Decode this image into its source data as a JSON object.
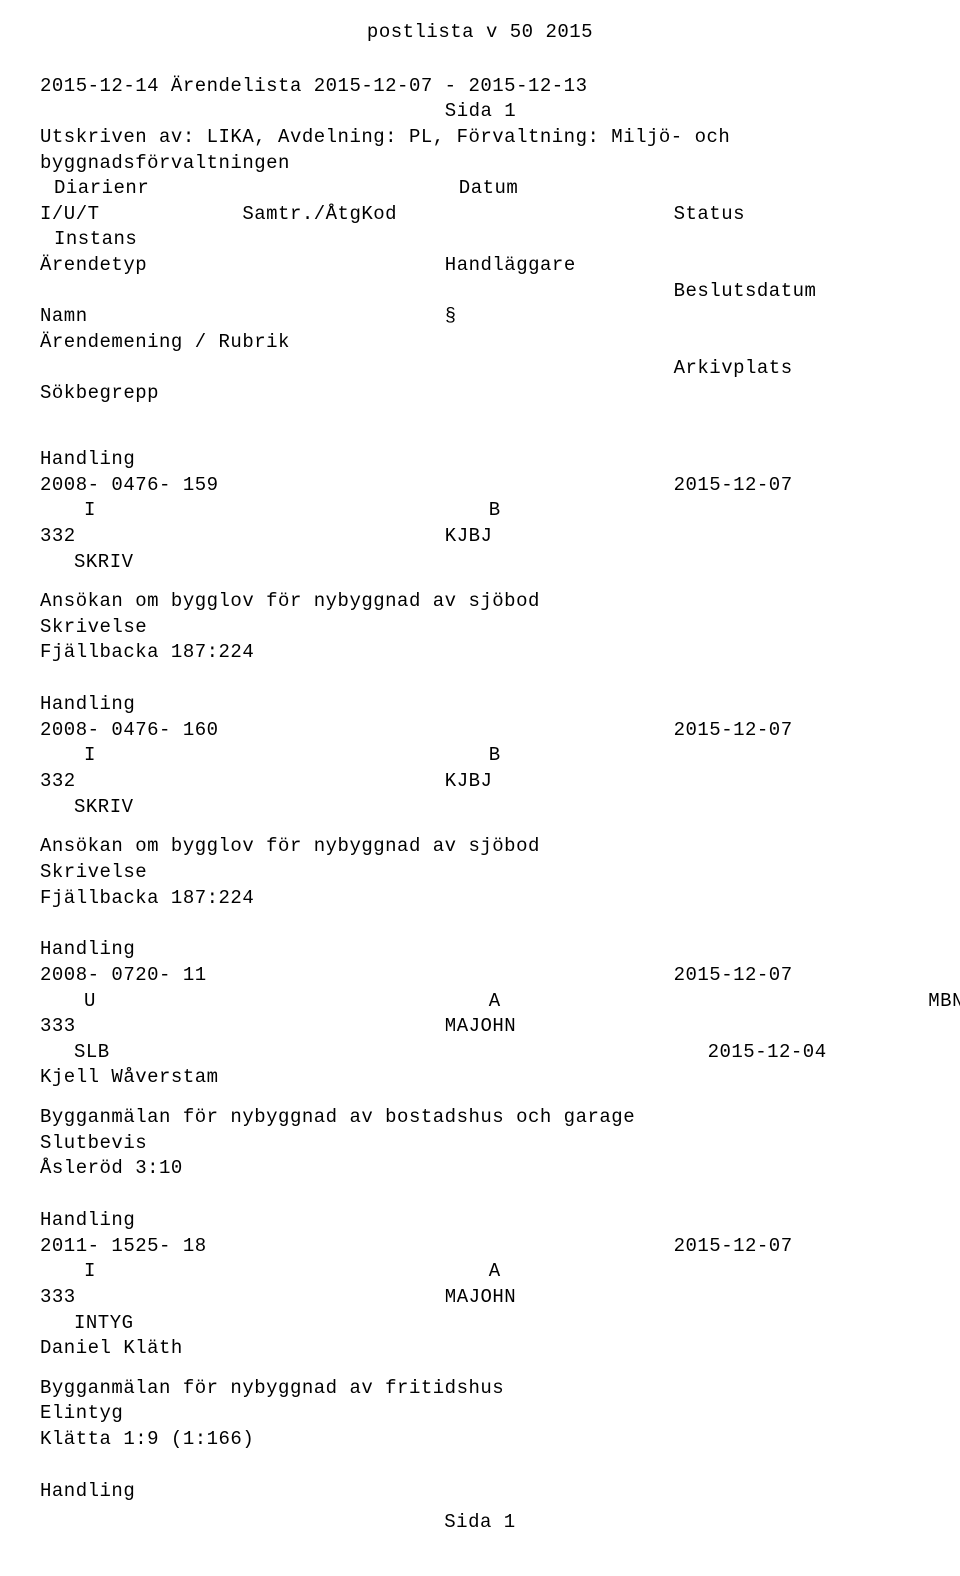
{
  "title": "postlista v 50 2015",
  "header": {
    "line1": "2015-12-14 Ärendelista 2015-12-07 - 2015-12-13",
    "sida": "Sida 1",
    "utskriven": "Utskriven av: LIKA,  Avdelning: PL,  Förvaltning: Miljö- och",
    "byggnads": "byggnadsförvaltningen",
    "diarienr": "Diarienr",
    "datum": "Datum",
    "iut": "I/U/T",
    "samtr": "Samtr./ÅtgKod",
    "status": "Status",
    "instans": "Instans",
    "arendetyp": "Ärendetyp",
    "handlaggare": "Handläggare",
    "beslutsdatum": "Beslutsdatum",
    "namn": "Namn",
    "arendemening": "Ärendemening / Rubrik",
    "paragraph": "§",
    "arkivplats": "Arkivplats",
    "sokbegrepp": "Sökbegrepp"
  },
  "r1": {
    "handling": "Handling",
    "dnr": "2008- 0476- 159",
    "date": "2015-12-07",
    "iut": "I",
    "kod": "B",
    "typ": "332",
    "hand": "KJBJ",
    "inst": "SKRIV",
    "rubrik": "Ansökan om bygglov för nybyggnad av sjöbod",
    "sub": "Skrivelse",
    "sok": "Fjällbacka 187:224"
  },
  "r2": {
    "handling": "Handling",
    "dnr": "2008- 0476- 160",
    "date": "2015-12-07",
    "iut": "I",
    "kod": "B",
    "typ": "332",
    "hand": "KJBJ",
    "inst": "SKRIV",
    "rubrik": "Ansökan om bygglov för nybyggnad av sjöbod",
    "sub": "Skrivelse",
    "sok": "Fjällbacka 187:224"
  },
  "r3": {
    "handling": "Handling",
    "dnr": "2008- 0720- 11",
    "date": "2015-12-07",
    "iut": "U",
    "kod": "A",
    "status": "MBN",
    "typ": "333",
    "hand": "MAJOHN",
    "inst": "SLB",
    "besl": "2015-12-04",
    "namn": "Kjell Wåverstam",
    "rubrik": "Bygganmälan för nybyggnad av bostadshus och garage",
    "sub": "Slutbevis",
    "sok": "Åsleröd 3:10"
  },
  "r4": {
    "handling": "Handling",
    "dnr": "2011- 1525- 18",
    "date": "2015-12-07",
    "iut": "I",
    "kod": "A",
    "typ": "333",
    "hand": "MAJOHN",
    "inst": "INTYG",
    "namn": "Daniel Kläth",
    "rubrik": "Bygganmälan för nybyggnad av fritidshus",
    "sub": "Elintyg",
    "sok": "Klätta 1:9 (1:166)"
  },
  "footer": {
    "handling": "Handling",
    "sida": "Sida 1"
  }
}
